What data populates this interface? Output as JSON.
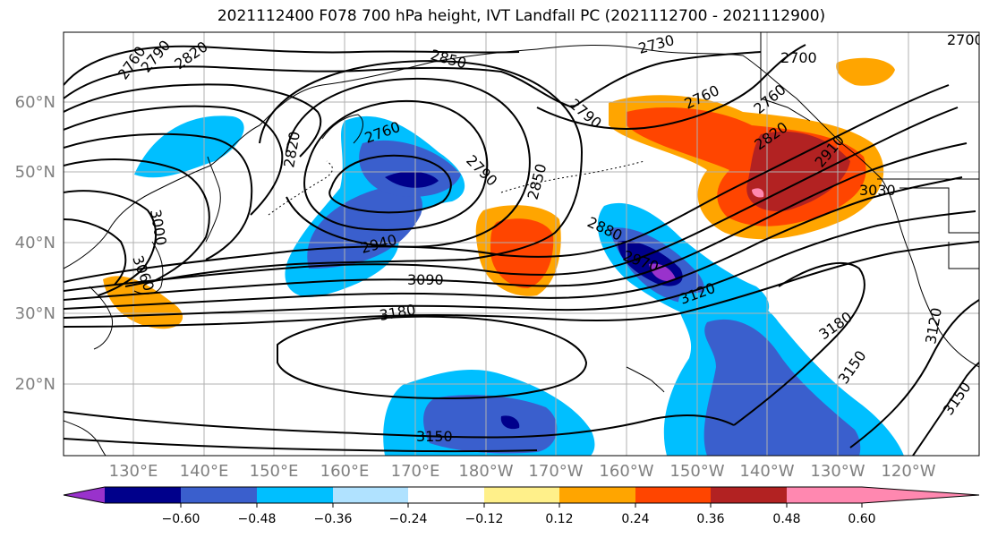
{
  "title": "2021112400 F078 700 hPa height, IVT Landfall PC (2021112700 - 2021112900)",
  "lat_labels": [
    "60°N",
    "50°N",
    "40°N",
    "30°N",
    "20°N"
  ],
  "lon_labels": [
    "130°E",
    "140°E",
    "150°E",
    "160°E",
    "170°E",
    "180°W",
    "170°W",
    "160°W",
    "150°W",
    "140°W",
    "130°W",
    "120°W"
  ],
  "colorbar": {
    "colors": [
      "#9932cc",
      "#00008b",
      "#3a5fcd",
      "#00bfff",
      "#b0e2ff",
      "#ffffff",
      "#fff08a",
      "#ffa500",
      "#ff4500",
      "#b22222",
      "#ff88b0"
    ],
    "tick_labels": [
      "−0.60",
      "−0.48",
      "−0.36",
      "−0.24",
      "−0.12",
      "0.12",
      "0.24",
      "0.36",
      "0.48",
      "0.60"
    ]
  },
  "contour_labels": [
    "2760",
    "2790",
    "2820",
    "2850",
    "2730",
    "2700",
    "2700",
    "2790",
    "2760",
    "2760",
    "2760",
    "2790",
    "2820",
    "2850",
    "2880",
    "2820",
    "2910",
    "3030",
    "3000",
    "3060",
    "2940",
    "2970",
    "3090",
    "3120",
    "3180",
    "3180",
    "3150",
    "3150",
    "3120",
    "3150"
  ]
}
